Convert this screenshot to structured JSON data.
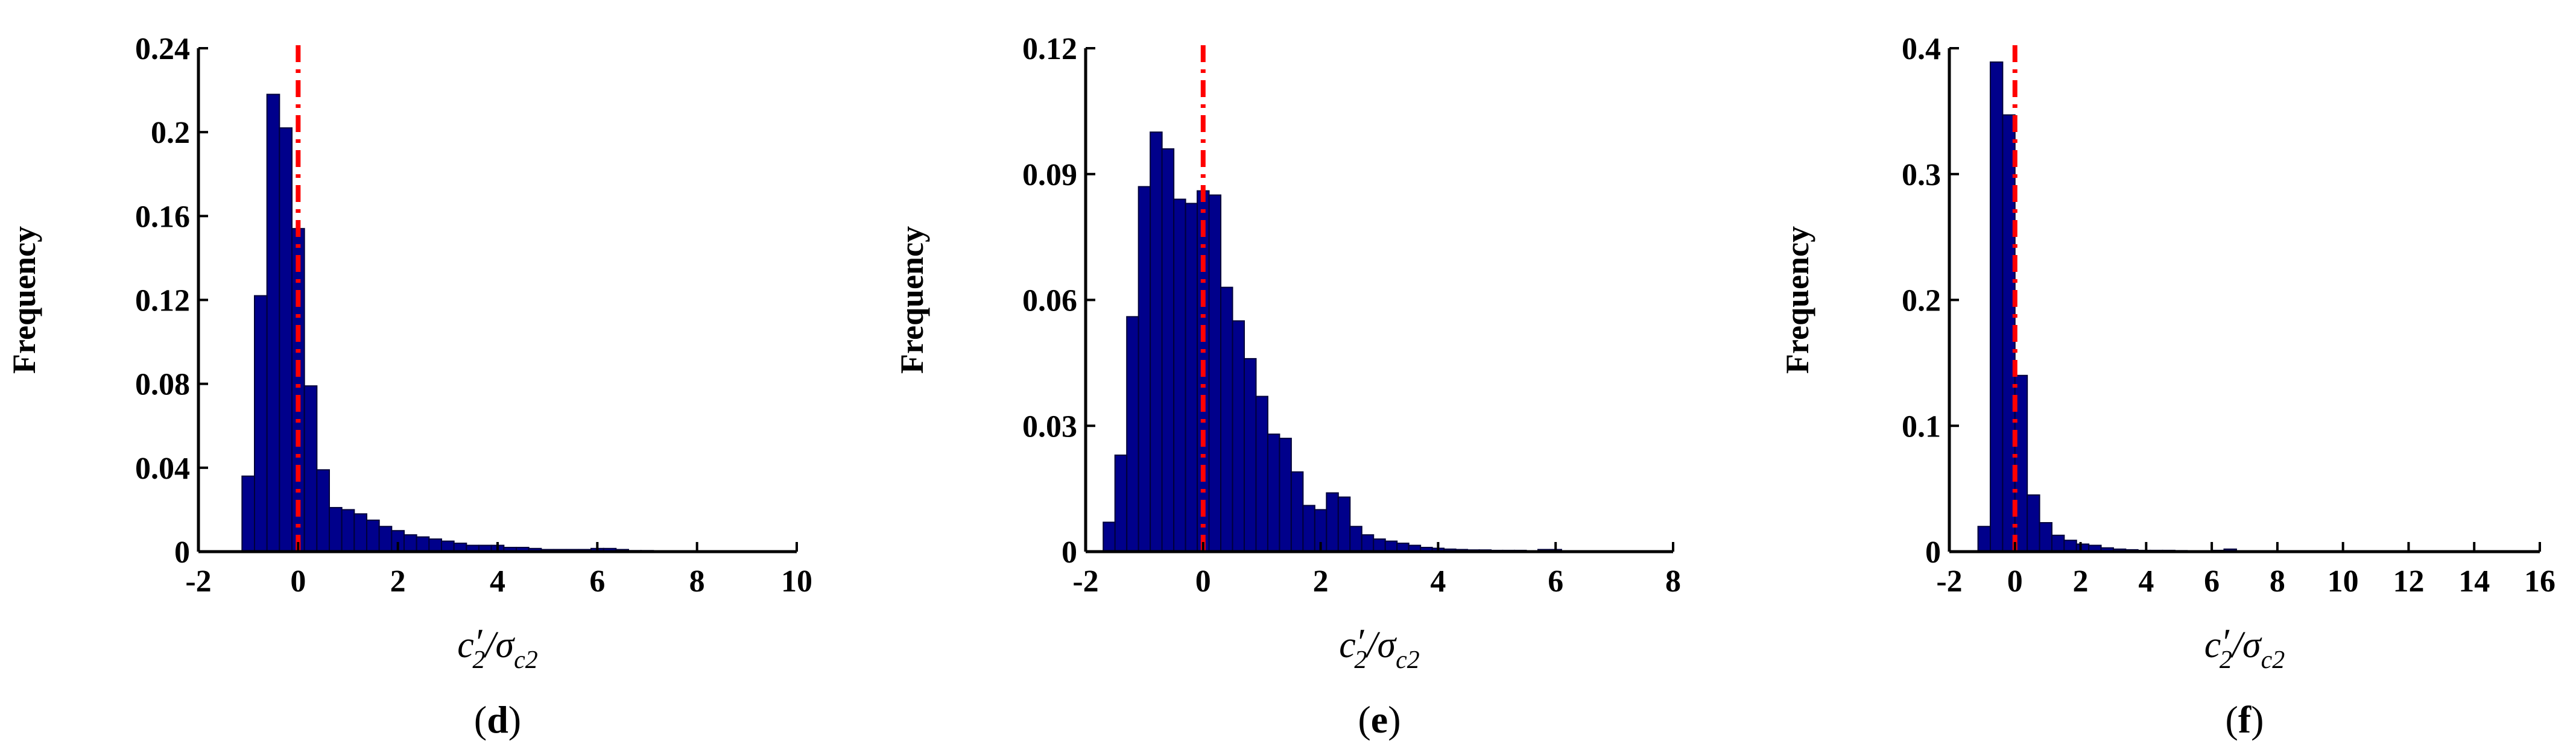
{
  "colors": {
    "bar": "#00008B",
    "bar_edge": "#00003a",
    "refline": "#ff0000",
    "axis": "#000000"
  },
  "chart_data": [
    {
      "type": "bar",
      "panel": "d",
      "ylabel": "Frequency",
      "xlabel_parts": {
        "c": "c",
        "prime": "′",
        "csub": "2",
        "slash": "/",
        "sigma": "σ",
        "ssub": "c2"
      },
      "xlim": [
        -2,
        10
      ],
      "ylim": [
        0,
        0.24
      ],
      "xticks": [
        "-2",
        "0",
        "2",
        "4",
        "6",
        "8",
        "10"
      ],
      "yticks": [
        "0",
        "0.04",
        "0.08",
        "0.12",
        "0.16",
        "0.2",
        "0.24"
      ],
      "bin_start": -1.125,
      "bin_width": 0.25,
      "values": [
        0.036,
        0.122,
        0.218,
        0.202,
        0.154,
        0.079,
        0.039,
        0.021,
        0.02,
        0.018,
        0.015,
        0.012,
        0.01,
        0.008,
        0.007,
        0.006,
        0.005,
        0.004,
        0.003,
        0.003,
        0.003,
        0.002,
        0.002,
        0.0015,
        0.001,
        0.001,
        0.001,
        0.001,
        0.0015,
        0.0015,
        0.001,
        0.0005,
        0.0005,
        0.0003,
        0.0003,
        0.0002,
        0.0002,
        0.0002,
        0.0001,
        0.0001,
        0.0001
      ],
      "refline_x": 0
    },
    {
      "type": "bar",
      "panel": "e",
      "ylabel": "Frequency",
      "xlabel_parts": {
        "c": "c",
        "prime": "′",
        "csub": "2",
        "slash": "/",
        "sigma": "σ",
        "ssub": "c2"
      },
      "xlim": [
        -2,
        8
      ],
      "ylim": [
        0,
        0.12
      ],
      "xticks": [
        "-2",
        "0",
        "2",
        "4",
        "6",
        "8"
      ],
      "yticks": [
        "0",
        "0.03",
        "0.06",
        "0.09",
        "0.12"
      ],
      "bin_start": -1.7,
      "bin_width": 0.2,
      "values": [
        0.007,
        0.023,
        0.056,
        0.087,
        0.1,
        0.096,
        0.084,
        0.083,
        0.086,
        0.085,
        0.063,
        0.055,
        0.046,
        0.037,
        0.028,
        0.027,
        0.019,
        0.011,
        0.01,
        0.014,
        0.013,
        0.006,
        0.004,
        0.003,
        0.0025,
        0.002,
        0.0015,
        0.001,
        0.0008,
        0.0006,
        0.0005,
        0.0004,
        0.0004,
        0.0003,
        0.0003,
        0.0003,
        0.0002,
        0.0005,
        0.0005,
        0.0002
      ],
      "refline_x": 0
    },
    {
      "type": "bar",
      "panel": "f",
      "ylabel": "Frequency",
      "xlabel_parts": {
        "c": "c",
        "prime": "′",
        "csub": "2",
        "slash": "/",
        "sigma": "σ",
        "ssub": "c2"
      },
      "xlim": [
        -2,
        16
      ],
      "ylim": [
        0,
        0.4
      ],
      "xticks": [
        "-2",
        "0",
        "2",
        "4",
        "6",
        "8",
        "10",
        "12",
        "14",
        "16"
      ],
      "yticks": [
        "0",
        "0.1",
        "0.2",
        "0.3",
        "0.4"
      ],
      "bin_start": -1.125,
      "bin_width": 0.375,
      "values": [
        0.02,
        0.389,
        0.347,
        0.14,
        0.045,
        0.023,
        0.013,
        0.009,
        0.006,
        0.005,
        0.003,
        0.002,
        0.0015,
        0.001,
        0.001,
        0.001,
        0.0008,
        0.0006,
        0.0005,
        0.001,
        0.002,
        0.0005,
        0.0005,
        0.0003,
        0.0003,
        0.0003,
        0.0002,
        0.0002,
        0.0002,
        0.0001
      ],
      "refline_x": 0
    }
  ]
}
